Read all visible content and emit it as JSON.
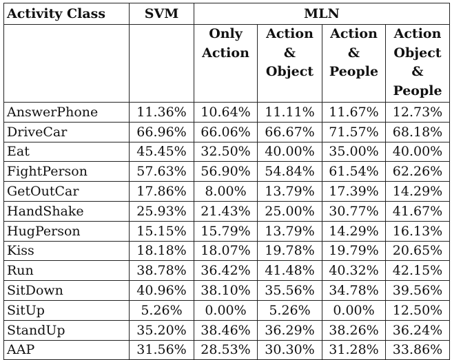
{
  "header": {
    "activity_class": "Activity Class",
    "svm": "SVM",
    "mln": "MLN"
  },
  "subheaders": [
    [
      "Only",
      "Action"
    ],
    [
      "Action",
      "&",
      "Object"
    ],
    [
      "Action",
      "&",
      "People"
    ],
    [
      "Action",
      "Object",
      "&",
      "People"
    ]
  ],
  "rows": [
    {
      "name": "AnswerPhone",
      "values": [
        "11.36%",
        "10.64%",
        "11.11%",
        "11.67%",
        "12.73%"
      ]
    },
    {
      "name": "DriveCar",
      "values": [
        "66.96%",
        "66.06%",
        "66.67%",
        "71.57%",
        "68.18%"
      ]
    },
    {
      "name": "Eat",
      "values": [
        "45.45%",
        "32.50%",
        "40.00%",
        "35.00%",
        "40.00%"
      ]
    },
    {
      "name": "FightPerson",
      "values": [
        "57.63%",
        "56.90%",
        "54.84%",
        "61.54%",
        "62.26%"
      ]
    },
    {
      "name": "GetOutCar",
      "values": [
        "17.86%",
        "8.00%",
        "13.79%",
        "17.39%",
        "14.29%"
      ]
    },
    {
      "name": "HandShake",
      "values": [
        "25.93%",
        "21.43%",
        "25.00%",
        "30.77%",
        "41.67%"
      ]
    },
    {
      "name": "HugPerson",
      "values": [
        "15.15%",
        "15.79%",
        "13.79%",
        "14.29%",
        "16.13%"
      ]
    },
    {
      "name": "Kiss",
      "values": [
        "18.18%",
        "18.07%",
        "19.78%",
        "19.79%",
        "20.65%"
      ]
    },
    {
      "name": "Run",
      "values": [
        "38.78%",
        "36.42%",
        "41.48%",
        "40.32%",
        "42.15%"
      ]
    },
    {
      "name": "SitDown",
      "values": [
        "40.96%",
        "38.10%",
        "35.56%",
        "34.78%",
        "39.56%"
      ]
    },
    {
      "name": "SitUp",
      "values": [
        "5.26%",
        "0.00%",
        "5.26%",
        "0.00%",
        "12.50%"
      ]
    },
    {
      "name": "StandUp",
      "values": [
        "35.20%",
        "38.46%",
        "36.29%",
        "38.26%",
        "36.24%"
      ]
    },
    {
      "name": "AAP",
      "values": [
        "31.56%",
        "28.53%",
        "30.30%",
        "31.28%",
        "33.86%"
      ]
    }
  ]
}
